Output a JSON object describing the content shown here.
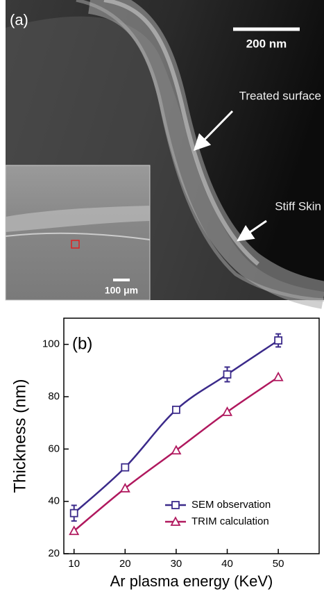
{
  "image_panel": {
    "panel_label": "(a)",
    "scale_bar": "200 nm",
    "annotation_1": "Treated surface",
    "annotation_2": "Stiff Skin",
    "inset_scale_bar": "100 μm"
  },
  "chart_data": {
    "type": "line",
    "panel_label": "(b)",
    "x_label": "Ar plasma energy (KeV)",
    "y_label": "Thickness (nm)",
    "x": [
      10,
      20,
      30,
      40,
      50
    ],
    "series": [
      {
        "name": "SEM observation",
        "color": "#3b2a8a",
        "marker": "square",
        "values": [
          35.5,
          53,
          75,
          88.5,
          101.5
        ],
        "errors": [
          3,
          1,
          1.2,
          2.8,
          2.5
        ]
      },
      {
        "name": "TRIM calculation",
        "color": "#b0185e",
        "marker": "triangle",
        "values": [
          28.7,
          45,
          59.5,
          74.2,
          87.5
        ]
      }
    ],
    "xlim": [
      8,
      58
    ],
    "ylim": [
      20,
      110
    ],
    "xticks": [
      10,
      20,
      30,
      40,
      50
    ],
    "yticks": [
      20,
      40,
      60,
      80,
      100
    ],
    "legend": "lower right"
  }
}
